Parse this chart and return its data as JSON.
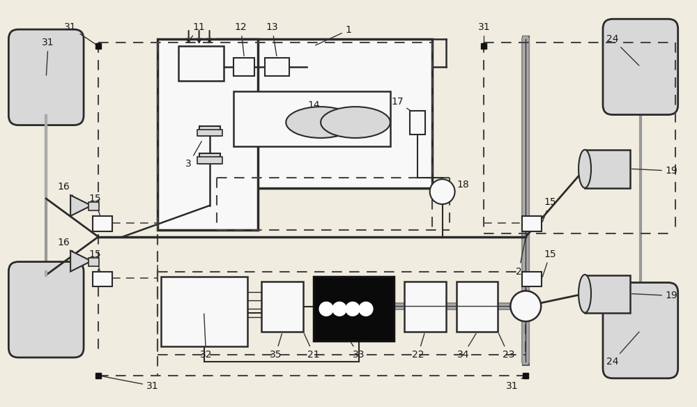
{
  "bg_color": "#f0ece0",
  "line_color": "#2a2a2a",
  "dashed_color": "#444444",
  "thick_shaft_color": "#888888",
  "black_box_color": "#0a0a0a",
  "gray_fill": "#d8d8d8",
  "white_fill": "#f8f8f8"
}
